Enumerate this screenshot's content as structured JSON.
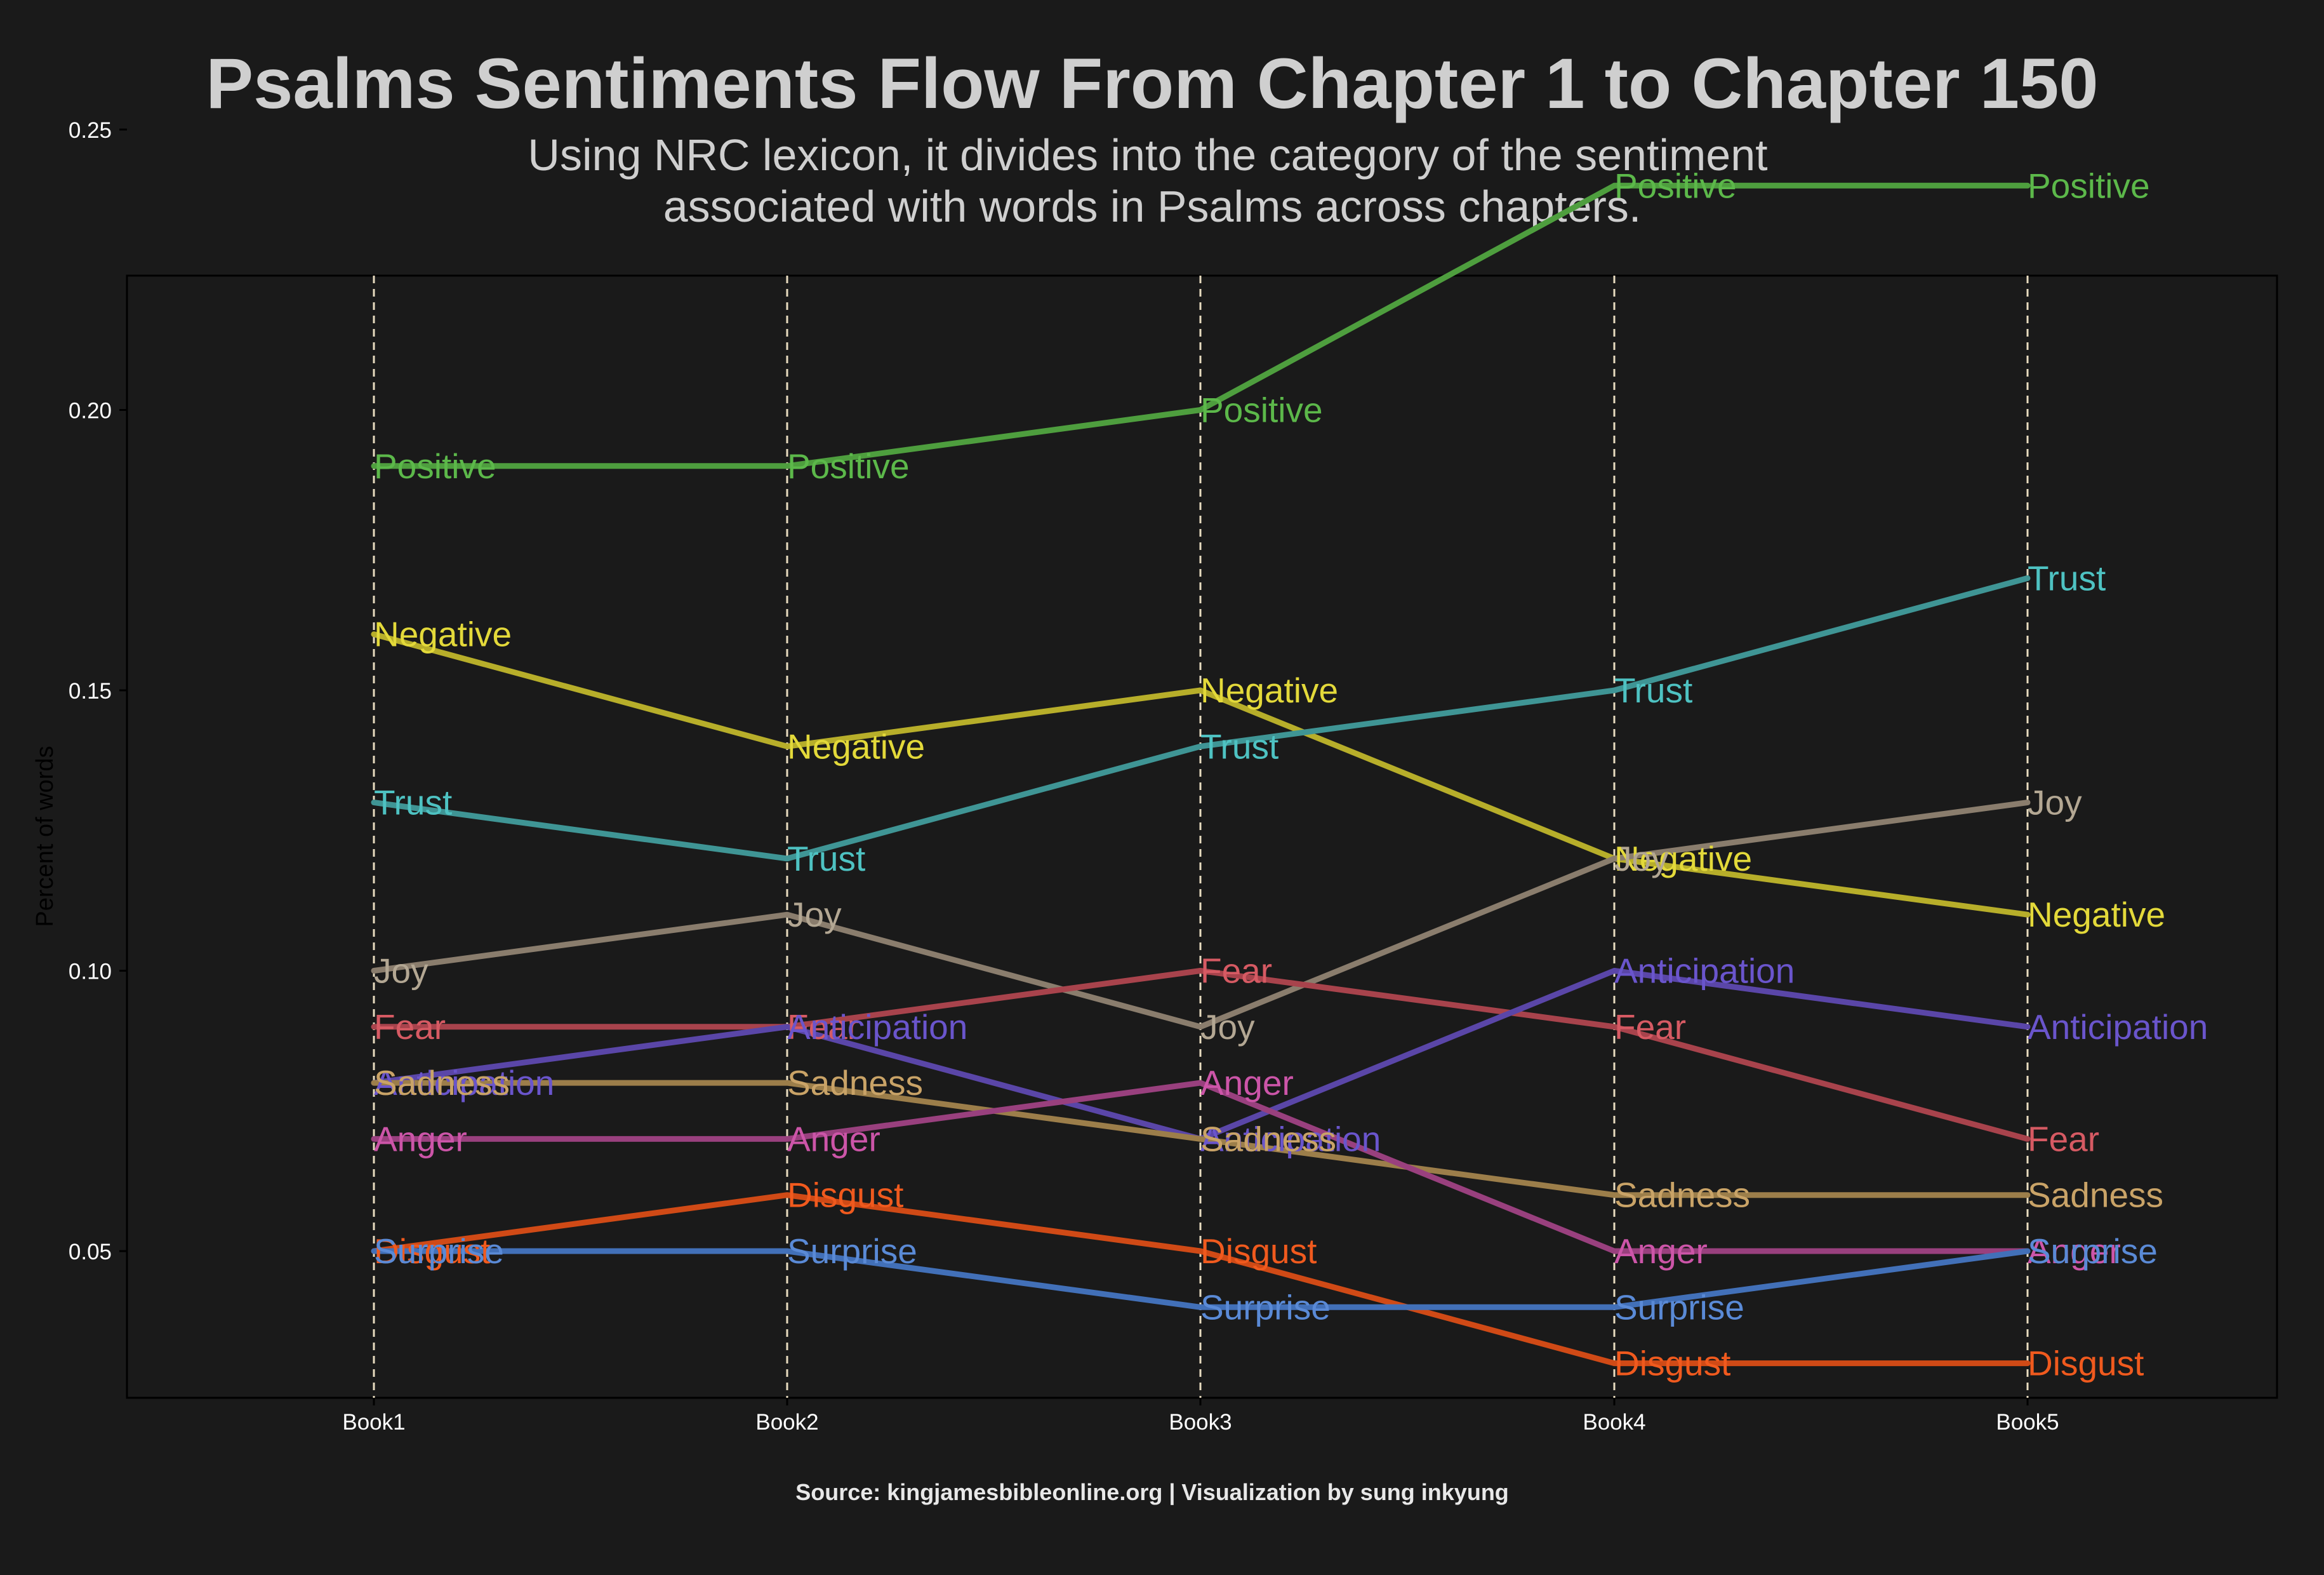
{
  "chart_data": {
    "type": "line",
    "title": "Psalms Sentiments Flow From Chapter 1 to Chapter 150",
    "subtitle_lines": [
      "Using NRC lexicon, it divides into the category of the sentiment",
      "associated with words in Psalms across chapters."
    ],
    "caption": "Source: kingjamesbibleonline.org | Visualization by sung inkyung",
    "xlabel": "",
    "ylabel": "Percent of words",
    "categories": [
      "Book1",
      "Book2",
      "Book3",
      "Book4",
      "Book5"
    ],
    "ylim": [
      0.02,
      0.25
    ],
    "yticks": [
      0.05,
      0.1,
      0.15,
      0.2,
      0.25
    ],
    "ytick_labels": [
      "0.05",
      "0.10",
      "0.15",
      "0.20",
      "0.25"
    ],
    "grid": "dashed vertical lines at each book",
    "legend": "none (labels placed at each point)",
    "series": [
      {
        "name": "Positive",
        "values": [
          0.19,
          0.19,
          0.2,
          0.24,
          0.24
        ],
        "color": "#4e9e3e",
        "label_color": "#5cb84a"
      },
      {
        "name": "Negative",
        "values": [
          0.16,
          0.14,
          0.15,
          0.12,
          0.11
        ],
        "color": "#b7ae2a",
        "label_color": "#e3d93a"
      },
      {
        "name": "Trust",
        "values": [
          0.13,
          0.12,
          0.14,
          0.15,
          0.17
        ],
        "color": "#3f9595",
        "label_color": "#4ec2c2"
      },
      {
        "name": "Joy",
        "values": [
          0.1,
          0.11,
          0.09,
          0.12,
          0.13
        ],
        "color": "#8a7d6d",
        "label_color": "#b3a793"
      },
      {
        "name": "Fear",
        "values": [
          0.09,
          0.09,
          0.1,
          0.09,
          0.07
        ],
        "color": "#a8434c",
        "label_color": "#d65a63"
      },
      {
        "name": "Anticipation",
        "values": [
          0.08,
          0.09,
          0.07,
          0.1,
          0.09
        ],
        "color": "#5a46a8",
        "label_color": "#6a55cc"
      },
      {
        "name": "Sadness",
        "values": [
          0.08,
          0.08,
          0.07,
          0.06,
          0.06
        ],
        "color": "#9c7e4a",
        "label_color": "#c9a367"
      },
      {
        "name": "Anger",
        "values": [
          0.07,
          0.07,
          0.08,
          0.05,
          0.05
        ],
        "color": "#99407e",
        "label_color": "#cc55a8"
      },
      {
        "name": "Disgust",
        "values": [
          0.05,
          0.06,
          0.05,
          0.03,
          0.03
        ],
        "color": "#d04a16",
        "label_color": "#f05a1e"
      },
      {
        "name": "Surprise",
        "values": [
          0.05,
          0.05,
          0.04,
          0.04,
          0.05
        ],
        "color": "#4270b8",
        "label_color": "#5a8ad6"
      }
    ]
  },
  "colors": {
    "background": "#1a1a1a",
    "grid_line": "#e8dcc0",
    "panel_border": "#000000"
  }
}
